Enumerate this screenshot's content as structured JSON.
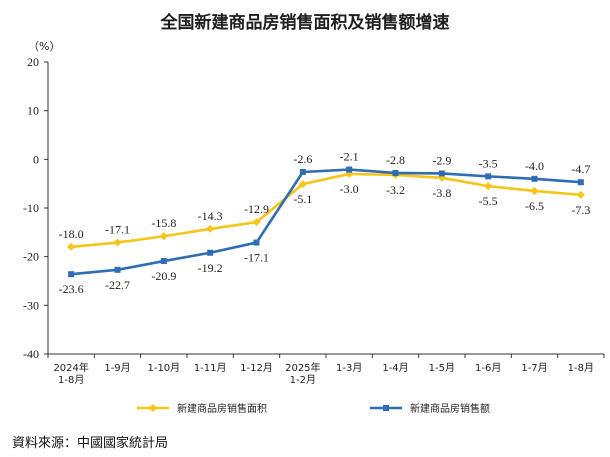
{
  "chart_data": {
    "type": "line",
    "title": "全国新建商品房销售面积及销售额增速",
    "ylabel": "（%）",
    "ylim": [
      -40,
      20
    ],
    "yticks": [
      20,
      10,
      0,
      -10,
      -20,
      -30,
      -40
    ],
    "categories": [
      "2024年\n1-8月",
      "1-9月",
      "1-10月",
      "1-11月",
      "1-12月",
      "2025年\n1-2月",
      "1-3月",
      "1-4月",
      "1-5月",
      "1-6月",
      "1-7月",
      "1-8月"
    ],
    "series": [
      {
        "name": "新建商品房销售面积",
        "color": "#f5c518",
        "values": [
          -18.0,
          -17.1,
          -15.8,
          -14.3,
          -12.9,
          -5.1,
          -3.0,
          -3.2,
          -3.8,
          -5.5,
          -6.5,
          -7.3
        ],
        "labels": [
          "-18.0",
          "-17.1",
          "-15.8",
          "-14.3",
          "-12.9",
          "-5.1",
          "-3.0",
          "-3.2",
          "-3.8",
          "-5.5",
          "-6.5",
          "-7.3"
        ]
      },
      {
        "name": "新建商品房销售额",
        "color": "#2e6db4",
        "values": [
          -23.6,
          -22.7,
          -20.9,
          -19.2,
          -17.1,
          -2.6,
          -2.1,
          -2.8,
          -2.9,
          -3.5,
          -4.0,
          -4.7
        ],
        "labels": [
          "-23.6",
          "-22.7",
          "-20.9",
          "-19.2",
          "-17.1",
          "-2.6",
          "-2.1",
          "-2.8",
          "-2.9",
          "-3.5",
          "-4.0",
          "-4.7"
        ]
      }
    ],
    "grid": false,
    "legend_position": "bottom"
  },
  "source": "資料來源：中國國家統計局"
}
